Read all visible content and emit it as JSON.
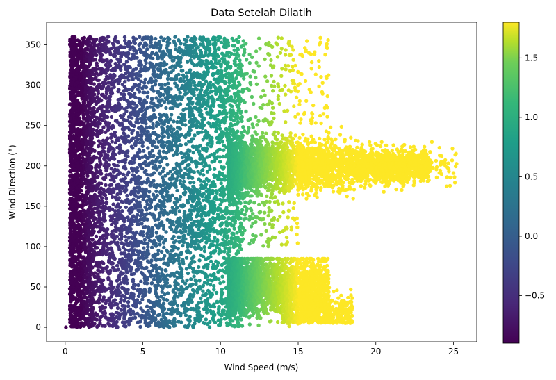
{
  "chart_data": {
    "type": "scatter",
    "title": "Data Setelah Dilatih",
    "xlabel": "Wind Speed (m/s)",
    "ylabel": "Wind Direction (°)",
    "xlim": [
      -1.2,
      26.5
    ],
    "ylim": [
      -18,
      378
    ],
    "xticks": [
      0,
      5,
      10,
      15,
      20,
      25
    ],
    "yticks": [
      0,
      50,
      100,
      150,
      200,
      250,
      300,
      350
    ],
    "grid": false,
    "colormap": "viridis",
    "colorbar": {
      "range": [
        -0.9,
        1.8
      ],
      "ticks": [
        -0.5,
        0.0,
        0.5,
        1.0,
        1.5
      ],
      "tick_labels": [
        "−0.5",
        "0.0",
        "0.5",
        "1.0",
        "1.5"
      ]
    },
    "color_mapping_note": "",
    "clusters": [
      {
        "x_range": [
          0.3,
          11.5
        ],
        "y_range": [
          0,
          360
        ],
        "density": "dense"
      },
      {
        "x_range": [
          11.5,
          25.2
        ],
        "y_range": [
          150,
          250
        ],
        "density": "dense",
        "center_y": 200
      },
      {
        "x_range": [
          11.5,
          18.5
        ],
        "y_range": [
          0,
          85
        ],
        "density": "dense",
        "center_y": 50
      },
      {
        "x_range": [
          11.5,
          17
        ],
        "y_range": [
          250,
          360
        ],
        "density": "sparse"
      },
      {
        "x_range": [
          11.5,
          15
        ],
        "y_range": [
          100,
          150
        ],
        "density": "sparse"
      }
    ]
  }
}
